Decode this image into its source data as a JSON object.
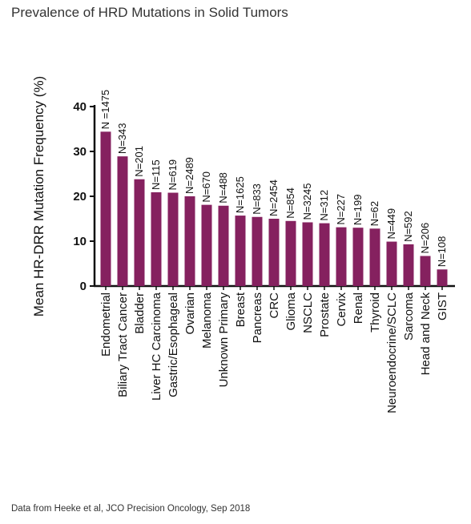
{
  "header": {
    "title": "Prevalence of HRD Mutations in Solid Tumors"
  },
  "footer": {
    "source": "Data from Heeke et al, JCO Precision Oncology, Sep 2018"
  },
  "colors": {
    "bar": "#85215f",
    "axis": "#111111"
  },
  "chart_data": {
    "type": "bar",
    "ylabel": "Mean HR-DRR Mutation Frequency (%)",
    "xlabel": "",
    "ylim": [
      0,
      40
    ],
    "yticks": [
      0,
      10,
      20,
      30,
      40
    ],
    "categories": [
      "Endometrial",
      "Biliary Tract Cancer",
      "Bladder",
      "Liver HC Carcinoma",
      "Gastric/Esophageal",
      "Ovarian",
      "Melanoma",
      "Unknown Primary",
      "Breast",
      "Pancreas",
      "CRC",
      "Glioma",
      "NSCLC",
      "Prostate",
      "Cervix",
      "Renal",
      "Thyroid",
      "Neuroendocrine/SCLC",
      "Sarcoma",
      "Head and Neck",
      "GIST"
    ],
    "values": [
      34.4,
      28.9,
      23.8,
      20.9,
      20.8,
      20.0,
      18.1,
      17.9,
      15.7,
      15.4,
      15.0,
      14.5,
      14.2,
      14.0,
      13.1,
      13.0,
      12.8,
      9.9,
      9.3,
      6.7,
      3.7
    ],
    "annotations": [
      "N =1475",
      "N=343",
      "N=201",
      "N=115",
      "N=619",
      "N=2489",
      "N=670",
      "N=488",
      "N=1625",
      "N=833",
      "N=2454",
      "N=854",
      "N=3245",
      "N=312",
      "N=227",
      "N=199",
      "N=62",
      "N=449",
      "N=592",
      "N=206",
      "N=108"
    ]
  }
}
